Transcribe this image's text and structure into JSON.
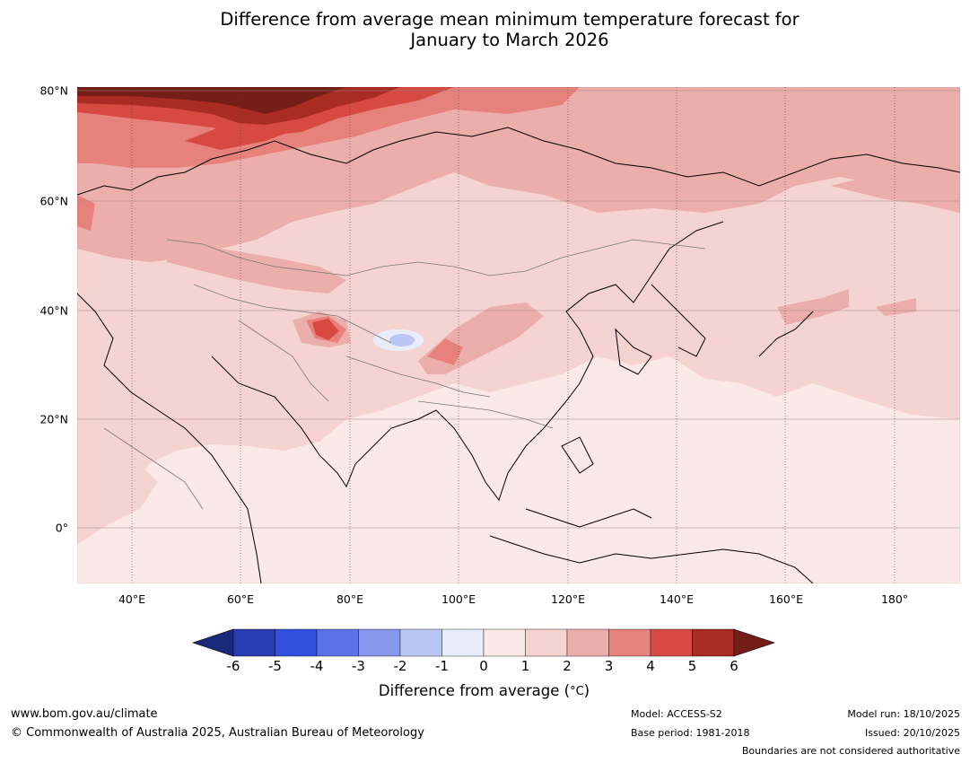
{
  "title": {
    "line1": "Difference from average mean minimum temperature forecast for",
    "line2": "January to March 2026"
  },
  "map": {
    "lat_labels": [
      "80°N",
      "60°N",
      "40°N",
      "20°N",
      "0°"
    ],
    "lon_labels": [
      "40°E",
      "60°E",
      "80°E",
      "100°E",
      "120°E",
      "140°E",
      "160°E",
      "180°"
    ],
    "extent": {
      "lon_min": 30,
      "lon_max": 192,
      "lat_min": -10,
      "lat_max": 81
    }
  },
  "colorbar": {
    "ticks": [
      "-6",
      "-5",
      "-4",
      "-3",
      "-2",
      "-1",
      "0",
      "1",
      "2",
      "3",
      "4",
      "5",
      "6"
    ],
    "colors": [
      "#1c2a7a",
      "#2a3db0",
      "#3050e0",
      "#5b72e4",
      "#8898ec",
      "#bcc6f4",
      "#e8ecfb",
      "#fbe9e7",
      "#f5d3d0",
      "#ecaeaa",
      "#e6817c",
      "#d64a41",
      "#a92b22",
      "#751e18"
    ],
    "label": "Difference from average (°C)",
    "label_prefix": "Difference from average (",
    "label_unit": "°C",
    "label_suffix": ")"
  },
  "footer": {
    "website": "www.bom.gov.au/climate",
    "copyright": "© Commonwealth of Australia 2025, Australian Bureau of Meteorology",
    "model": "Model: ACCESS-S2",
    "base_period": "Base period: 1981-2018",
    "model_run": "Model run: 18/10/2025",
    "issued": "Issued: 20/10/2025",
    "disclaimer": "Boundaries are not considered authoritative"
  }
}
